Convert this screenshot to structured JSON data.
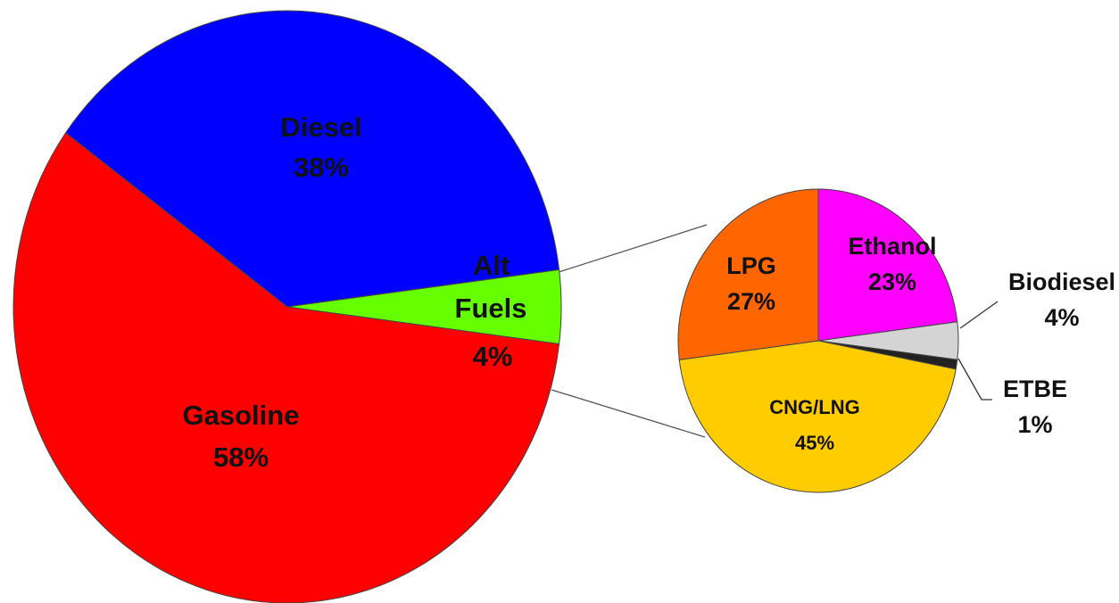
{
  "chart_data": [
    {
      "type": "pie",
      "labels": [
        "Diesel",
        "Alt Fuels",
        "Gasoline"
      ],
      "values": [
        38,
        4,
        58
      ],
      "value_labels": [
        "38%",
        "4%",
        "58%"
      ],
      "colors": [
        "#0000ff",
        "#66ff00",
        "#ff0000"
      ]
    },
    {
      "type": "pie",
      "labels": [
        "Ethanol",
        "Biodiesel",
        "ETBE",
        "CNG/LNG",
        "LPG"
      ],
      "values": [
        23,
        4,
        1,
        45,
        27
      ],
      "value_labels": [
        "23%",
        "4%",
        "1%",
        "45%",
        "27%"
      ],
      "colors": [
        "#ff00ff",
        "#d4d4d4",
        "#222222",
        "#ffcc00",
        "#ff6600"
      ]
    }
  ]
}
